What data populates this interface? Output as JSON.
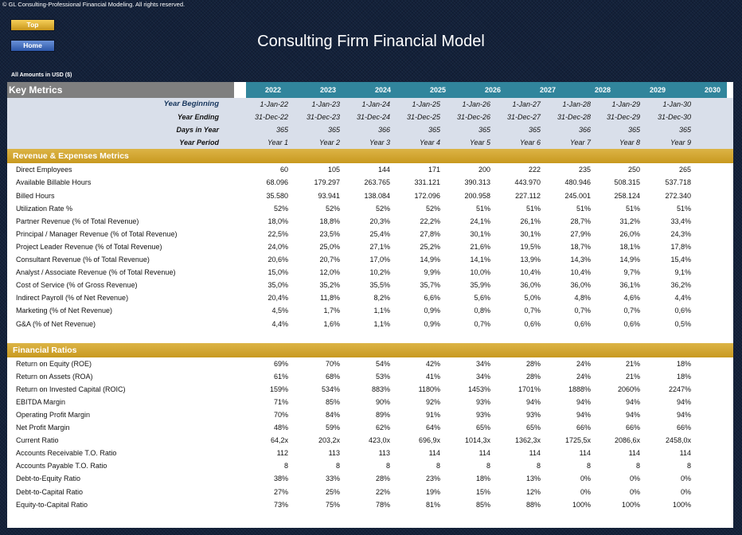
{
  "header": {
    "copyright": "© GL Consulting-Professional Financial Modeling. All rights reserved.",
    "title": "Consulting Firm Financial Model",
    "amounts_note": "All Amounts in  USD ($)",
    "top_button": "Top",
    "home_button": "Home"
  },
  "key_metrics": {
    "title": "Key Metrics",
    "years": [
      "2022",
      "2023",
      "2024",
      "2025",
      "2026",
      "2027",
      "2028",
      "2029",
      "2030"
    ],
    "meta_rows": [
      {
        "label": "Year Beginning",
        "values": [
          "1-Jan-22",
          "1-Jan-23",
          "1-Jan-24",
          "1-Jan-25",
          "1-Jan-26",
          "1-Jan-27",
          "1-Jan-28",
          "1-Jan-29",
          "1-Jan-30"
        ]
      },
      {
        "label": "Year Ending",
        "values": [
          "31-Dec-22",
          "31-Dec-23",
          "31-Dec-24",
          "31-Dec-25",
          "31-Dec-26",
          "31-Dec-27",
          "31-Dec-28",
          "31-Dec-29",
          "31-Dec-30"
        ]
      },
      {
        "label": "Days in Year",
        "values": [
          "365",
          "365",
          "366",
          "365",
          "365",
          "365",
          "366",
          "365",
          "365"
        ]
      },
      {
        "label": "Year Period",
        "values": [
          "Year 1",
          "Year 2",
          "Year 3",
          "Year 4",
          "Year 5",
          "Year 6",
          "Year 7",
          "Year 8",
          "Year 9"
        ]
      }
    ]
  },
  "revenue_section": {
    "title": "Revenue & Expenses Metrics",
    "rows": [
      {
        "label": "Direct Employees",
        "values": [
          "60",
          "105",
          "144",
          "171",
          "200",
          "222",
          "235",
          "250",
          "265"
        ]
      },
      {
        "label": "Available Billable Hours",
        "values": [
          "68.096",
          "179.297",
          "263.765",
          "331.121",
          "390.313",
          "443.970",
          "480.946",
          "508.315",
          "537.718"
        ]
      },
      {
        "label": "Billed Hours",
        "values": [
          "35.580",
          "93.941",
          "138.084",
          "172.096",
          "200.958",
          "227.112",
          "245.001",
          "258.124",
          "272.340"
        ]
      },
      {
        "label": "Utilization Rate %",
        "values": [
          "52%",
          "52%",
          "52%",
          "52%",
          "51%",
          "51%",
          "51%",
          "51%",
          "51%"
        ]
      },
      {
        "label": "Partner Revenue (% of Total Revenue)",
        "values": [
          "18,0%",
          "18,8%",
          "20,3%",
          "22,2%",
          "24,1%",
          "26,1%",
          "28,7%",
          "31,2%",
          "33,4%"
        ]
      },
      {
        "label": "Principal / Manager Revenue (% of Total Revenue)",
        "values": [
          "22,5%",
          "23,5%",
          "25,4%",
          "27,8%",
          "30,1%",
          "30,1%",
          "27,9%",
          "26,0%",
          "24,3%"
        ]
      },
      {
        "label": "Project Leader Revenue (% of Total Revenue)",
        "values": [
          "24,0%",
          "25,0%",
          "27,1%",
          "25,2%",
          "21,6%",
          "19,5%",
          "18,7%",
          "18,1%",
          "17,8%"
        ]
      },
      {
        "label": "Consultant Revenue (% of Total Revenue)",
        "values": [
          "20,6%",
          "20,7%",
          "17,0%",
          "14,9%",
          "14,1%",
          "13,9%",
          "14,3%",
          "14,9%",
          "15,4%"
        ]
      },
      {
        "label": "Analyst / Associate Revenue (% of Total Revenue)",
        "values": [
          "15,0%",
          "12,0%",
          "10,2%",
          "9,9%",
          "10,0%",
          "10,4%",
          "10,4%",
          "9,7%",
          "9,1%"
        ]
      },
      {
        "label": "Cost of Service (% of Gross Revenue)",
        "values": [
          "35,0%",
          "35,2%",
          "35,5%",
          "35,7%",
          "35,9%",
          "36,0%",
          "36,0%",
          "36,1%",
          "36,2%"
        ]
      },
      {
        "label": "Indirect Payroll (% of Net Revenue)",
        "values": [
          "20,4%",
          "11,8%",
          "8,2%",
          "6,6%",
          "5,6%",
          "5,0%",
          "4,8%",
          "4,6%",
          "4,4%"
        ]
      },
      {
        "label": "Marketing (% of Net Revenue)",
        "values": [
          "4,5%",
          "1,7%",
          "1,1%",
          "0,9%",
          "0,8%",
          "0,7%",
          "0,7%",
          "0,7%",
          "0,6%"
        ]
      },
      {
        "label": "G&A (% of Net Revenue)",
        "values": [
          "4,4%",
          "1,6%",
          "1,1%",
          "0,9%",
          "0,7%",
          "0,6%",
          "0,6%",
          "0,6%",
          "0,5%"
        ]
      }
    ]
  },
  "ratios_section": {
    "title": "Financial Ratios",
    "rows": [
      {
        "label": "Return on Equity (ROE)",
        "values": [
          "69%",
          "70%",
          "54%",
          "42%",
          "34%",
          "28%",
          "24%",
          "21%",
          "18%"
        ]
      },
      {
        "label": "Return on Assets (ROA)",
        "values": [
          "61%",
          "68%",
          "53%",
          "41%",
          "34%",
          "28%",
          "24%",
          "21%",
          "18%"
        ]
      },
      {
        "label": "Return on Invested Capital (ROIC)",
        "values": [
          "159%",
          "534%",
          "883%",
          "1180%",
          "1453%",
          "1701%",
          "1888%",
          "2060%",
          "2247%"
        ]
      },
      {
        "label": "EBITDA Margin",
        "values": [
          "71%",
          "85%",
          "90%",
          "92%",
          "93%",
          "94%",
          "94%",
          "94%",
          "94%"
        ]
      },
      {
        "label": "Operating Profit Margin",
        "values": [
          "70%",
          "84%",
          "89%",
          "91%",
          "93%",
          "93%",
          "94%",
          "94%",
          "94%"
        ]
      },
      {
        "label": "Net Profit Margin",
        "values": [
          "48%",
          "59%",
          "62%",
          "64%",
          "65%",
          "65%",
          "66%",
          "66%",
          "66%"
        ]
      },
      {
        "label": "Current Ratio",
        "values": [
          "64,2x",
          "203,2x",
          "423,0x",
          "696,9x",
          "1014,3x",
          "1362,3x",
          "1725,5x",
          "2086,6x",
          "2458,0x"
        ]
      },
      {
        "label": "Accounts Receivable T.O. Ratio",
        "values": [
          "112",
          "113",
          "113",
          "114",
          "114",
          "114",
          "114",
          "114",
          "114"
        ]
      },
      {
        "label": "Accounts Payable T.O. Ratio",
        "values": [
          "8",
          "8",
          "8",
          "8",
          "8",
          "8",
          "8",
          "8",
          "8"
        ]
      },
      {
        "label": "Debt-to-Equity Ratio",
        "values": [
          "38%",
          "33%",
          "28%",
          "23%",
          "18%",
          "13%",
          "0%",
          "0%",
          "0%"
        ]
      },
      {
        "label": "Debt-to-Capital Ratio",
        "values": [
          "27%",
          "25%",
          "22%",
          "19%",
          "15%",
          "12%",
          "0%",
          "0%",
          "0%"
        ]
      },
      {
        "label": "Equity-to-Capital Ratio",
        "values": [
          "73%",
          "75%",
          "78%",
          "81%",
          "85%",
          "88%",
          "100%",
          "100%",
          "100%"
        ]
      }
    ]
  }
}
